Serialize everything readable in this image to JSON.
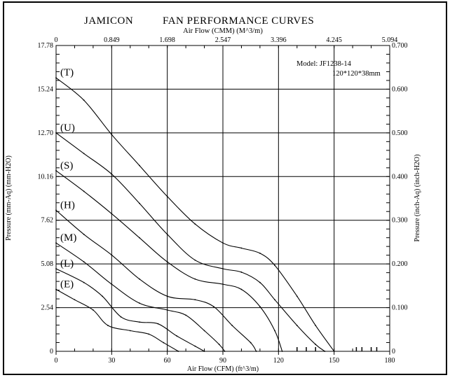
{
  "chart_data": {
    "type": "line",
    "title_brand": "JAMICON",
    "title": "FAN PERFORMANCE CURVES",
    "x2label": "Air Flow (CMM) (M^3/m)",
    "xlabel": "Air Flow (CFM) (ft^3/m)",
    "ylabel": "Pressure (mm-Aq) (mm-H2O)",
    "y2label": "Pressure (inch-Aq) (inch-H2O)",
    "model_line1": "Model:  JF1238-14",
    "model_line2": "120*120*38mm",
    "xlim": [
      0,
      180
    ],
    "ylim": [
      0,
      17.78
    ],
    "x_ticks": [
      "0",
      "30",
      "60",
      "90",
      "120",
      "150",
      "180"
    ],
    "x2_ticks": [
      "0",
      "0.849",
      "1.698",
      "2.547",
      "3.396",
      "4.245",
      "5.094"
    ],
    "y_ticks": [
      "0",
      "2.54",
      "5.08",
      "7.62",
      "10.16",
      "12.70",
      "15.24",
      "17.78"
    ],
    "y2_ticks": [
      "0",
      "0.100",
      "0.200",
      "0.300",
      "0.400",
      "0.500",
      "0.600",
      "0.700"
    ],
    "grid": true,
    "colors": {
      "line": "#000000",
      "background": "#ffffff"
    },
    "series": [
      {
        "name": "(T)",
        "points": [
          [
            0,
            15.9
          ],
          [
            15,
            14.6
          ],
          [
            30,
            12.6
          ],
          [
            45,
            10.8
          ],
          [
            60,
            9.0
          ],
          [
            75,
            7.4
          ],
          [
            90,
            6.3
          ],
          [
            100,
            6.0
          ],
          [
            110,
            5.7
          ],
          [
            118,
            5.0
          ],
          [
            130,
            3.2
          ],
          [
            140,
            1.5
          ],
          [
            150,
            0
          ]
        ]
      },
      {
        "name": "(U)",
        "points": [
          [
            0,
            12.7
          ],
          [
            15,
            11.5
          ],
          [
            30,
            10.3
          ],
          [
            45,
            8.6
          ],
          [
            60,
            6.8
          ],
          [
            75,
            5.3
          ],
          [
            90,
            4.8
          ],
          [
            100,
            4.6
          ],
          [
            110,
            4.0
          ],
          [
            118,
            3.0
          ],
          [
            130,
            1.5
          ],
          [
            140,
            0.4
          ],
          [
            145,
            0
          ]
        ]
      },
      {
        "name": "(S)",
        "points": [
          [
            0,
            10.5
          ],
          [
            15,
            9.3
          ],
          [
            30,
            8.0
          ],
          [
            45,
            6.6
          ],
          [
            60,
            5.2
          ],
          [
            75,
            4.2
          ],
          [
            90,
            3.9
          ],
          [
            100,
            3.6
          ],
          [
            110,
            2.6
          ],
          [
            118,
            1.2
          ],
          [
            122,
            0
          ]
        ]
      },
      {
        "name": "(H)",
        "points": [
          [
            0,
            8.2
          ],
          [
            15,
            6.8
          ],
          [
            30,
            5.6
          ],
          [
            45,
            4.2
          ],
          [
            60,
            3.2
          ],
          [
            75,
            3.0
          ],
          [
            85,
            2.6
          ],
          [
            95,
            1.5
          ],
          [
            105,
            0.5
          ],
          [
            108,
            0
          ]
        ]
      },
      {
        "name": "(M)",
        "points": [
          [
            0,
            6.3
          ],
          [
            15,
            5.2
          ],
          [
            30,
            3.9
          ],
          [
            45,
            2.8
          ],
          [
            60,
            2.4
          ],
          [
            70,
            2.1
          ],
          [
            80,
            1.2
          ],
          [
            88,
            0.4
          ],
          [
            91,
            0
          ]
        ]
      },
      {
        "name": "(L)",
        "points": [
          [
            0,
            4.8
          ],
          [
            15,
            4.0
          ],
          [
            25,
            3.2
          ],
          [
            35,
            2.0
          ],
          [
            45,
            1.7
          ],
          [
            55,
            1.6
          ],
          [
            65,
            0.9
          ],
          [
            75,
            0.3
          ],
          [
            80,
            0
          ]
        ]
      },
      {
        "name": "(E)",
        "points": [
          [
            0,
            3.6
          ],
          [
            10,
            3.0
          ],
          [
            20,
            2.4
          ],
          [
            28,
            1.5
          ],
          [
            40,
            1.2
          ],
          [
            50,
            1.0
          ],
          [
            58,
            0.5
          ],
          [
            66,
            0
          ]
        ]
      }
    ]
  }
}
